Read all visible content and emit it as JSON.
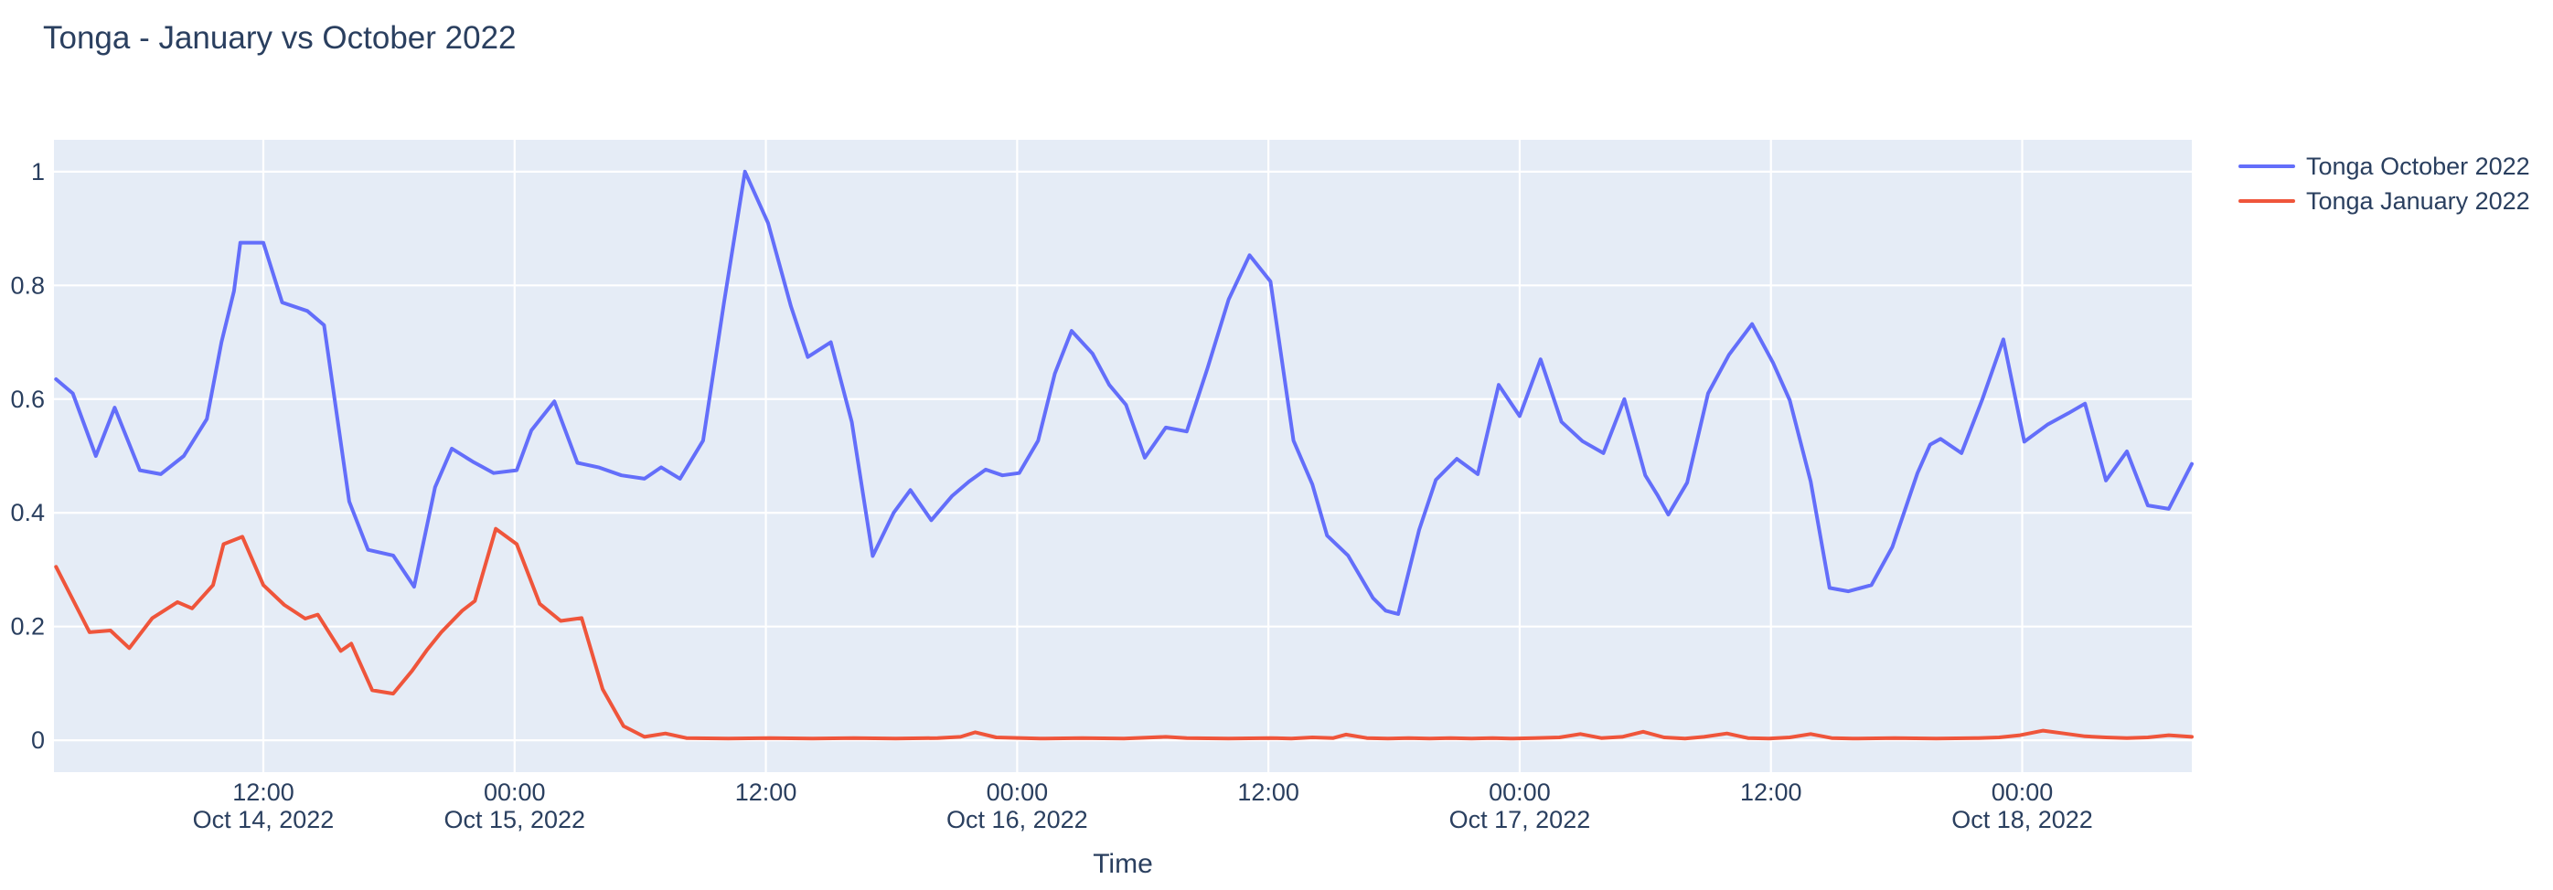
{
  "title": "Tonga - January vs October 2022",
  "colors": {
    "text": "#2a3f5f",
    "plot_background": "#e5ecf6",
    "grid": "#ffffff",
    "october_line": "#636efa",
    "january_line": "#ef553b"
  },
  "legend": {
    "items": [
      {
        "label": "Tonga October 2022",
        "color": "#636efa"
      },
      {
        "label": "Tonga January 2022",
        "color": "#ef553b"
      }
    ]
  },
  "x_axis": {
    "title": "Time",
    "ticks": [
      {
        "h": 12,
        "time": "12:00",
        "date": "Oct 14, 2022"
      },
      {
        "h": 24,
        "time": "00:00",
        "date": "Oct 15, 2022"
      },
      {
        "h": 36,
        "time": "12:00",
        "date": ""
      },
      {
        "h": 48,
        "time": "00:00",
        "date": "Oct 16, 2022"
      },
      {
        "h": 60,
        "time": "12:00",
        "date": ""
      },
      {
        "h": 72,
        "time": "00:00",
        "date": "Oct 17, 2022"
      },
      {
        "h": 84,
        "time": "12:00",
        "date": ""
      },
      {
        "h": 96,
        "time": "00:00",
        "date": "Oct 18, 2022"
      }
    ]
  },
  "y_axis": {
    "ticks": [
      {
        "v": 0,
        "label": "0"
      },
      {
        "v": 0.2,
        "label": "0.2"
      },
      {
        "v": 0.4,
        "label": "0.4"
      },
      {
        "v": 0.6,
        "label": "0.6"
      },
      {
        "v": 0.8,
        "label": "0.8"
      },
      {
        "v": 1,
        "label": "1"
      }
    ]
  },
  "chart_data": {
    "type": "line",
    "title": "Tonga - January vs October 2022",
    "xlabel": "Time",
    "ylabel": "",
    "x_unit": "hours since 2022-10-14 00:00",
    "x_range": [
      2,
      104.1
    ],
    "y_range": [
      -0.056,
      1.056
    ],
    "grid": true,
    "legend_position": "right",
    "series": [
      {
        "name": "Tonga October 2022",
        "color": "#636efa",
        "points": [
          [
            2.1,
            0.635
          ],
          [
            2.9,
            0.61
          ],
          [
            4,
            0.5
          ],
          [
            4.9,
            0.585
          ],
          [
            6.1,
            0.475
          ],
          [
            7.1,
            0.468
          ],
          [
            8.2,
            0.5
          ],
          [
            9.3,
            0.565
          ],
          [
            10,
            0.7
          ],
          [
            10.6,
            0.79
          ],
          [
            10.9,
            0.875
          ],
          [
            12,
            0.875
          ],
          [
            12.9,
            0.77
          ],
          [
            14.1,
            0.755
          ],
          [
            14.9,
            0.73
          ],
          [
            16.1,
            0.42
          ],
          [
            17,
            0.335
          ],
          [
            18.2,
            0.325
          ],
          [
            19.2,
            0.27
          ],
          [
            20.2,
            0.445
          ],
          [
            21,
            0.513
          ],
          [
            22,
            0.49
          ],
          [
            23,
            0.47
          ],
          [
            24.1,
            0.475
          ],
          [
            24.8,
            0.545
          ],
          [
            25.9,
            0.596
          ],
          [
            27,
            0.488
          ],
          [
            28,
            0.48
          ],
          [
            29.1,
            0.466
          ],
          [
            30.2,
            0.46
          ],
          [
            31,
            0.48
          ],
          [
            31.9,
            0.46
          ],
          [
            33,
            0.527
          ],
          [
            34,
            0.77
          ],
          [
            35,
            1.0
          ],
          [
            36.1,
            0.91
          ],
          [
            37.2,
            0.763
          ],
          [
            38,
            0.674
          ],
          [
            39.1,
            0.7
          ],
          [
            40.1,
            0.56
          ],
          [
            41.1,
            0.324
          ],
          [
            42.1,
            0.4
          ],
          [
            42.9,
            0.44
          ],
          [
            43.9,
            0.387
          ],
          [
            44.9,
            0.43
          ],
          [
            45.7,
            0.455
          ],
          [
            46.5,
            0.476
          ],
          [
            47.3,
            0.466
          ],
          [
            48.1,
            0.47
          ],
          [
            49,
            0.527
          ],
          [
            49.8,
            0.645
          ],
          [
            50.6,
            0.72
          ],
          [
            51.6,
            0.68
          ],
          [
            52.4,
            0.625
          ],
          [
            53.2,
            0.59
          ],
          [
            54.1,
            0.497
          ],
          [
            55.1,
            0.55
          ],
          [
            56.1,
            0.543
          ],
          [
            57.1,
            0.655
          ],
          [
            58.1,
            0.775
          ],
          [
            59.1,
            0.853
          ],
          [
            60.1,
            0.807
          ],
          [
            61.2,
            0.527
          ],
          [
            62.1,
            0.45
          ],
          [
            62.8,
            0.36
          ],
          [
            63.8,
            0.325
          ],
          [
            65,
            0.25
          ],
          [
            65.6,
            0.228
          ],
          [
            66.2,
            0.222
          ],
          [
            67.2,
            0.37
          ],
          [
            68,
            0.458
          ],
          [
            69,
            0.495
          ],
          [
            70,
            0.468
          ],
          [
            71,
            0.625
          ],
          [
            72,
            0.57
          ],
          [
            73,
            0.67
          ],
          [
            74,
            0.56
          ],
          [
            75,
            0.526
          ],
          [
            76,
            0.505
          ],
          [
            77,
            0.6
          ],
          [
            78,
            0.466
          ],
          [
            78.6,
            0.43
          ],
          [
            79.1,
            0.397
          ],
          [
            80,
            0.453
          ],
          [
            81,
            0.61
          ],
          [
            82,
            0.678
          ],
          [
            83.1,
            0.732
          ],
          [
            84.1,
            0.664
          ],
          [
            84.9,
            0.598
          ],
          [
            85.9,
            0.455
          ],
          [
            86.8,
            0.268
          ],
          [
            87.7,
            0.262
          ],
          [
            88.8,
            0.273
          ],
          [
            89.8,
            0.34
          ],
          [
            91,
            0.47
          ],
          [
            91.6,
            0.52
          ],
          [
            92.1,
            0.53
          ],
          [
            93.1,
            0.505
          ],
          [
            94.1,
            0.6
          ],
          [
            95.1,
            0.705
          ],
          [
            96.1,
            0.525
          ],
          [
            97.2,
            0.555
          ],
          [
            98.2,
            0.575
          ],
          [
            99,
            0.592
          ],
          [
            100,
            0.457
          ],
          [
            101,
            0.508
          ],
          [
            102,
            0.413
          ],
          [
            103,
            0.407
          ],
          [
            104.1,
            0.486
          ]
        ]
      },
      {
        "name": "Tonga January 2022",
        "color": "#ef553b",
        "points": [
          [
            2.1,
            0.305
          ],
          [
            3.7,
            0.19
          ],
          [
            4.7,
            0.193
          ],
          [
            5.6,
            0.162
          ],
          [
            6.7,
            0.215
          ],
          [
            7.9,
            0.243
          ],
          [
            8.6,
            0.232
          ],
          [
            9.6,
            0.273
          ],
          [
            10.1,
            0.345
          ],
          [
            11,
            0.358
          ],
          [
            12,
            0.273
          ],
          [
            13,
            0.238
          ],
          [
            14,
            0.214
          ],
          [
            14.6,
            0.221
          ],
          [
            15.7,
            0.157
          ],
          [
            16.2,
            0.17
          ],
          [
            17.2,
            0.088
          ],
          [
            18.2,
            0.082
          ],
          [
            19.1,
            0.122
          ],
          [
            19.8,
            0.158
          ],
          [
            20.5,
            0.19
          ],
          [
            21.5,
            0.228
          ],
          [
            22.1,
            0.245
          ],
          [
            23.1,
            0.372
          ],
          [
            24.1,
            0.345
          ],
          [
            25.2,
            0.24
          ],
          [
            26.2,
            0.21
          ],
          [
            27.2,
            0.215
          ],
          [
            28.2,
            0.09
          ],
          [
            29.2,
            0.025
          ],
          [
            30.2,
            0.006
          ],
          [
            31.2,
            0.012
          ],
          [
            32.2,
            0.004
          ],
          [
            34.2,
            0.003
          ],
          [
            36.2,
            0.004
          ],
          [
            38.2,
            0.003
          ],
          [
            40.2,
            0.004
          ],
          [
            42.2,
            0.003
          ],
          [
            44.2,
            0.004
          ],
          [
            45.3,
            0.006
          ],
          [
            46,
            0.014
          ],
          [
            47,
            0.005
          ],
          [
            49.1,
            0.003
          ],
          [
            51.1,
            0.004
          ],
          [
            53.1,
            0.003
          ],
          [
            55.1,
            0.006
          ],
          [
            56.1,
            0.004
          ],
          [
            58.1,
            0.003
          ],
          [
            60.1,
            0.004
          ],
          [
            61.1,
            0.003
          ],
          [
            62.1,
            0.005
          ],
          [
            63.1,
            0.004
          ],
          [
            63.7,
            0.01
          ],
          [
            64.7,
            0.004
          ],
          [
            65.7,
            0.003
          ],
          [
            66.7,
            0.004
          ],
          [
            67.7,
            0.003
          ],
          [
            68.7,
            0.004
          ],
          [
            69.7,
            0.003
          ],
          [
            70.7,
            0.004
          ],
          [
            71.7,
            0.003
          ],
          [
            72.7,
            0.004
          ],
          [
            73.9,
            0.005
          ],
          [
            74.9,
            0.011
          ],
          [
            75.9,
            0.004
          ],
          [
            76.9,
            0.006
          ],
          [
            77.9,
            0.015
          ],
          [
            78.9,
            0.005
          ],
          [
            79.9,
            0.003
          ],
          [
            80.8,
            0.006
          ],
          [
            81.9,
            0.012
          ],
          [
            82.9,
            0.004
          ],
          [
            83.9,
            0.003
          ],
          [
            84.9,
            0.005
          ],
          [
            85.9,
            0.011
          ],
          [
            86.9,
            0.004
          ],
          [
            87.9,
            0.003
          ],
          [
            89.9,
            0.004
          ],
          [
            91.9,
            0.003
          ],
          [
            93.9,
            0.004
          ],
          [
            94.9,
            0.005
          ],
          [
            95.9,
            0.009
          ],
          [
            97,
            0.017
          ],
          [
            98,
            0.012
          ],
          [
            99,
            0.007
          ],
          [
            100,
            0.005
          ],
          [
            101,
            0.004
          ],
          [
            102,
            0.005
          ],
          [
            103,
            0.009
          ],
          [
            104.1,
            0.006
          ]
        ]
      }
    ]
  }
}
